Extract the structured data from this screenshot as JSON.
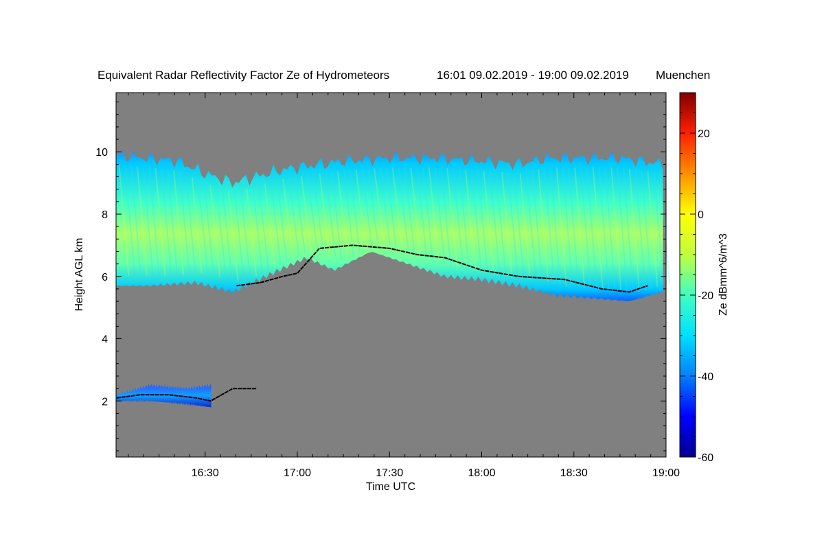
{
  "chart_data": {
    "type": "heatmap",
    "title": "Equivalent Radar Reflectivity Factor Ze of Hydrometeors",
    "time_range": "16:01 09.02.2019 - 19:00 09.02.2019",
    "location": "Muenchen",
    "xlabel": "Time UTC",
    "ylabel": "Height AGL km",
    "colorbar_label": "Ze dBmm^6/m^3",
    "xlim": [
      "16:01",
      "19:00"
    ],
    "ylim": [
      0.2,
      11.9
    ],
    "x_ticks": [
      "16:30",
      "17:00",
      "17:30",
      "18:00",
      "18:30",
      "19:00"
    ],
    "y_ticks": [
      2,
      4,
      6,
      8,
      10
    ],
    "colorbar_range": [
      -60,
      30
    ],
    "colorbar_ticks": [
      -60,
      -40,
      -20,
      0,
      20
    ],
    "colors": {
      "background": "#808080",
      "colormap": [
        "#00008f",
        "#0000ff",
        "#0080ff",
        "#00e0ff",
        "#40ffc0",
        "#c0ff40",
        "#ffff00",
        "#ff9000",
        "#ff2000",
        "#800000"
      ],
      "detection_line": "#000000"
    },
    "layers": [
      {
        "name": "upper cloud layer",
        "time_start": "16:01",
        "time_end": "18:59",
        "top_km": [
          [
            16.02,
            9.9
          ],
          [
            16.35,
            9.7
          ],
          [
            16.5,
            9.3
          ],
          [
            16.65,
            9.0
          ],
          [
            16.9,
            9.4
          ],
          [
            17.0,
            9.5
          ],
          [
            17.25,
            9.7
          ],
          [
            17.5,
            9.8
          ],
          [
            17.75,
            9.8
          ],
          [
            18.0,
            9.7
          ],
          [
            18.2,
            9.6
          ],
          [
            18.35,
            9.8
          ],
          [
            18.5,
            9.8
          ],
          [
            18.75,
            9.8
          ],
          [
            18.98,
            9.6
          ]
        ],
        "base_km": [
          [
            16.02,
            5.7
          ],
          [
            16.2,
            5.7
          ],
          [
            16.45,
            5.8
          ],
          [
            16.65,
            5.5
          ],
          [
            16.9,
            6.2
          ],
          [
            17.05,
            6.6
          ],
          [
            17.2,
            6.2
          ],
          [
            17.4,
            6.8
          ],
          [
            17.6,
            6.4
          ],
          [
            17.8,
            6.0
          ],
          [
            18.0,
            5.9
          ],
          [
            18.2,
            5.7
          ],
          [
            18.4,
            5.4
          ],
          [
            18.6,
            5.3
          ],
          [
            18.8,
            5.2
          ],
          [
            18.98,
            5.5
          ]
        ],
        "core_ze_dbz": -15
      },
      {
        "name": "low cloud layer",
        "time_start": "16:01",
        "time_end": "16:32",
        "top_km": [
          [
            16.02,
            2.2
          ],
          [
            16.2,
            2.5
          ],
          [
            16.4,
            2.4
          ],
          [
            16.53,
            2.5
          ]
        ],
        "base_km": [
          [
            16.02,
            2.0
          ],
          [
            16.2,
            2.0
          ],
          [
            16.4,
            1.9
          ],
          [
            16.53,
            1.8
          ]
        ],
        "core_ze_dbz": -38
      }
    ],
    "detection_line_km": [
      [
        16.67,
        5.7
      ],
      [
        16.8,
        5.8
      ],
      [
        16.92,
        6.0
      ],
      [
        17.0,
        6.1
      ],
      [
        17.12,
        6.9
      ],
      [
        17.3,
        7.0
      ],
      [
        17.5,
        6.9
      ],
      [
        17.65,
        6.7
      ],
      [
        17.8,
        6.6
      ],
      [
        18.0,
        6.2
      ],
      [
        18.2,
        6.0
      ],
      [
        18.45,
        5.9
      ],
      [
        18.65,
        5.6
      ],
      [
        18.8,
        5.5
      ],
      [
        18.9,
        5.7
      ]
    ],
    "low_detection_line_km": [
      [
        16.02,
        2.1
      ],
      [
        16.15,
        2.2
      ],
      [
        16.3,
        2.2
      ],
      [
        16.45,
        2.1
      ],
      [
        16.53,
        2.0
      ],
      [
        16.65,
        2.4
      ],
      [
        16.78,
        2.4
      ]
    ]
  }
}
